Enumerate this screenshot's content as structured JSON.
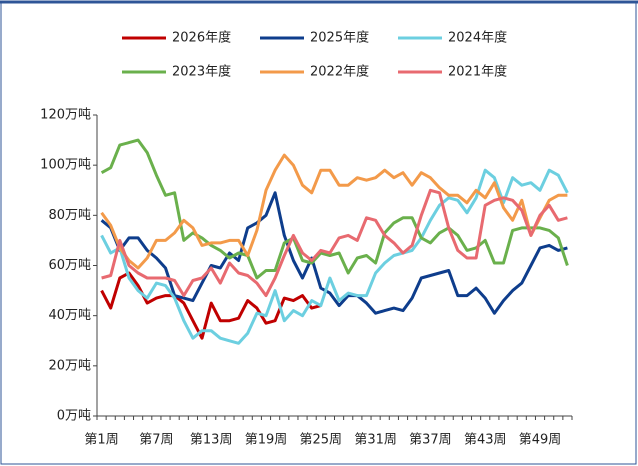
{
  "chart_data": {
    "type": "line",
    "categories": [
      "第1周",
      null,
      null,
      null,
      null,
      null,
      "第7周",
      null,
      null,
      null,
      null,
      null,
      "第13周",
      null,
      null,
      null,
      null,
      null,
      "第19周",
      null,
      null,
      null,
      null,
      null,
      "第25周",
      null,
      null,
      null,
      null,
      null,
      "第31周",
      null,
      null,
      null,
      null,
      null,
      "第37周",
      null,
      null,
      null,
      null,
      null,
      "第43周",
      null,
      null,
      null,
      null,
      null,
      "第49周",
      null,
      null,
      null
    ],
    "ylim": [
      0,
      120
    ],
    "yticks": [
      {
        "value": 0,
        "label": "0万吨"
      },
      {
        "value": 20,
        "label": "20万吨"
      },
      {
        "value": 40,
        "label": "40万吨"
      },
      {
        "value": 60,
        "label": "60万吨"
      },
      {
        "value": 80,
        "label": "80万吨"
      },
      {
        "value": 100,
        "label": "100万吨"
      },
      {
        "value": 120,
        "label": "120万吨"
      }
    ],
    "grid": false,
    "legend": "top",
    "series": [
      {
        "name": "2026年度",
        "color": "#c00000",
        "values": [
          50,
          43,
          55,
          57,
          52,
          45,
          47,
          48,
          48,
          45,
          38,
          31,
          45,
          38,
          38,
          39,
          46,
          43,
          37,
          38,
          47,
          46,
          48,
          43,
          44,
          null,
          null,
          null,
          null,
          null,
          null,
          null,
          null,
          null,
          null,
          null,
          null,
          null,
          null,
          null,
          null,
          null,
          null,
          null,
          null,
          null,
          null,
          null,
          null,
          null,
          null,
          null
        ]
      },
      {
        "name": "2025年度",
        "color": "#0e3d8c",
        "values": [
          78,
          75,
          66,
          71,
          71,
          66,
          63,
          59,
          48,
          47,
          46,
          53,
          60,
          59,
          65,
          62,
          75,
          77,
          80,
          89,
          72,
          62,
          55,
          63,
          51,
          49,
          44,
          48,
          48,
          45,
          41,
          42,
          43,
          42,
          47,
          55,
          56,
          57,
          58,
          48,
          48,
          51,
          47,
          41,
          46,
          50,
          53,
          60,
          67,
          68,
          66,
          67
        ]
      },
      {
        "name": "2024年度",
        "color": "#6ccfe0",
        "values": [
          72,
          65,
          67,
          55,
          50,
          47,
          53,
          52,
          47,
          38,
          31,
          34,
          34,
          31,
          30,
          29,
          33,
          41,
          40,
          50,
          38,
          42,
          40,
          46,
          44,
          55,
          46,
          49,
          48,
          48,
          57,
          61,
          64,
          65,
          66,
          71,
          78,
          84,
          87,
          86,
          81,
          87,
          98,
          95,
          85,
          95,
          92,
          93,
          90,
          98,
          96,
          89
        ]
      },
      {
        "name": "2023年度",
        "color": "#6ab04c",
        "values": [
          97,
          99,
          108,
          109,
          110,
          105,
          96,
          88,
          89,
          70,
          73,
          71,
          68,
          66,
          63,
          65,
          64,
          55,
          58,
          58,
          69,
          71,
          62,
          61,
          65,
          64,
          65,
          57,
          63,
          64,
          61,
          73,
          77,
          79,
          79,
          71,
          69,
          73,
          75,
          72,
          66,
          67,
          70,
          61,
          61,
          74,
          75,
          75,
          75,
          74,
          71,
          60
        ]
      },
      {
        "name": "2022年度",
        "color": "#f39a4a",
        "values": [
          81,
          76,
          67,
          62,
          59,
          63,
          70,
          70,
          73,
          78,
          75,
          68,
          69,
          69,
          70,
          70,
          64,
          74,
          90,
          98,
          104,
          100,
          92,
          89,
          98,
          98,
          92,
          92,
          95,
          94,
          95,
          98,
          95,
          97,
          92,
          97,
          95,
          91,
          88,
          88,
          85,
          90,
          87,
          93,
          83,
          78,
          86,
          72,
          79,
          86,
          88,
          88
        ]
      },
      {
        "name": "2021年度",
        "color": "#e86a70",
        "values": [
          55,
          56,
          70,
          60,
          57,
          55,
          55,
          55,
          54,
          48,
          54,
          55,
          59,
          53,
          61,
          57,
          56,
          53,
          48,
          55,
          64,
          72,
          65,
          62,
          66,
          65,
          71,
          72,
          70,
          79,
          78,
          72,
          69,
          65,
          68,
          80,
          90,
          89,
          75,
          66,
          63,
          63,
          84,
          86,
          87,
          86,
          82,
          72,
          80,
          84,
          78,
          79
        ]
      }
    ]
  }
}
